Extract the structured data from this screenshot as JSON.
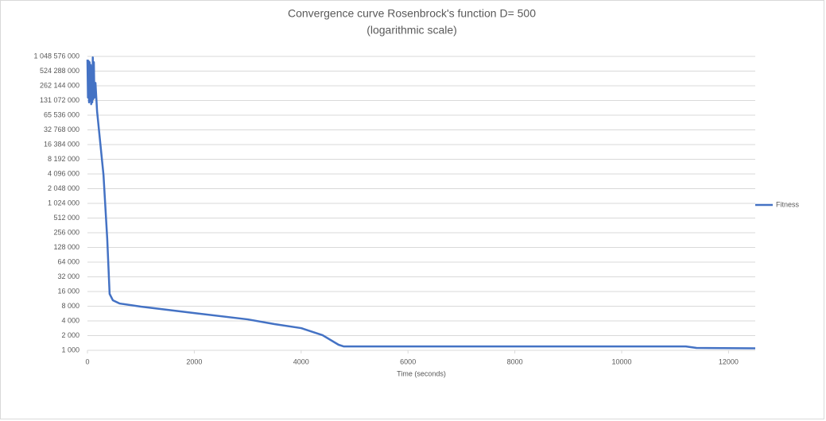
{
  "chart_data": {
    "type": "line",
    "title": "Convergence curve Rosenbrock's function D= 500",
    "subtitle": "(logarithmic scale)",
    "x_label": "Time (seconds)",
    "x": [
      0,
      10,
      20,
      30,
      40,
      50,
      60,
      70,
      80,
      90,
      100,
      110,
      120,
      130,
      150,
      180,
      300,
      370,
      415,
      475,
      600,
      1000,
      2000,
      3000,
      3500,
      4000,
      4400,
      4700,
      4800,
      11200,
      11400,
      12500
    ],
    "series": [
      {
        "name": "Fitness",
        "color": "#4472c4",
        "values": [
          900000000,
          150000000,
          850000000,
          120000000,
          800000000,
          130000000,
          700000000,
          110000000,
          600000000,
          120000000,
          1000000000,
          140000000,
          800000000,
          150000000,
          300000000,
          79000000,
          3950000,
          195000,
          14300,
          10600,
          9100,
          7850,
          5800,
          4300,
          3440,
          2850,
          2040,
          1300,
          1200,
          1200,
          1120,
          1100
        ]
      }
    ],
    "xlim": [
      0,
      12500
    ],
    "xticks": [
      0,
      2000,
      4000,
      6000,
      8000,
      10000,
      12000
    ],
    "ylim": [
      1000,
      1048576000
    ],
    "log_scale": true,
    "yticks": [
      {
        "value": 1000,
        "label": "1 000"
      },
      {
        "value": 2000,
        "label": "2 000"
      },
      {
        "value": 4000,
        "label": "4 000"
      },
      {
        "value": 8000,
        "label": "8 000"
      },
      {
        "value": 16000,
        "label": "16 000"
      },
      {
        "value": 32000,
        "label": "32 000"
      },
      {
        "value": 64000,
        "label": "64 000"
      },
      {
        "value": 128000,
        "label": "128 000"
      },
      {
        "value": 256000,
        "label": "256 000"
      },
      {
        "value": 512000,
        "label": "512 000"
      },
      {
        "value": 1024000,
        "label": "1 024 000"
      },
      {
        "value": 2048000,
        "label": "2 048 000"
      },
      {
        "value": 4096000,
        "label": "4 096 000"
      },
      {
        "value": 8192000,
        "label": "8 192 000"
      },
      {
        "value": 16384000,
        "label": "16 384 000"
      },
      {
        "value": 32768000,
        "label": "32 768 000"
      },
      {
        "value": 65536000,
        "label": "65 536 000"
      },
      {
        "value": 131072000,
        "label": "131 072 000"
      },
      {
        "value": 262144000,
        "label": "262 144 000"
      },
      {
        "value": 524288000,
        "label": "524 288 000"
      },
      {
        "value": 1048576000,
        "label": "1 048 576 000"
      }
    ],
    "grid": true,
    "legend": "right"
  }
}
